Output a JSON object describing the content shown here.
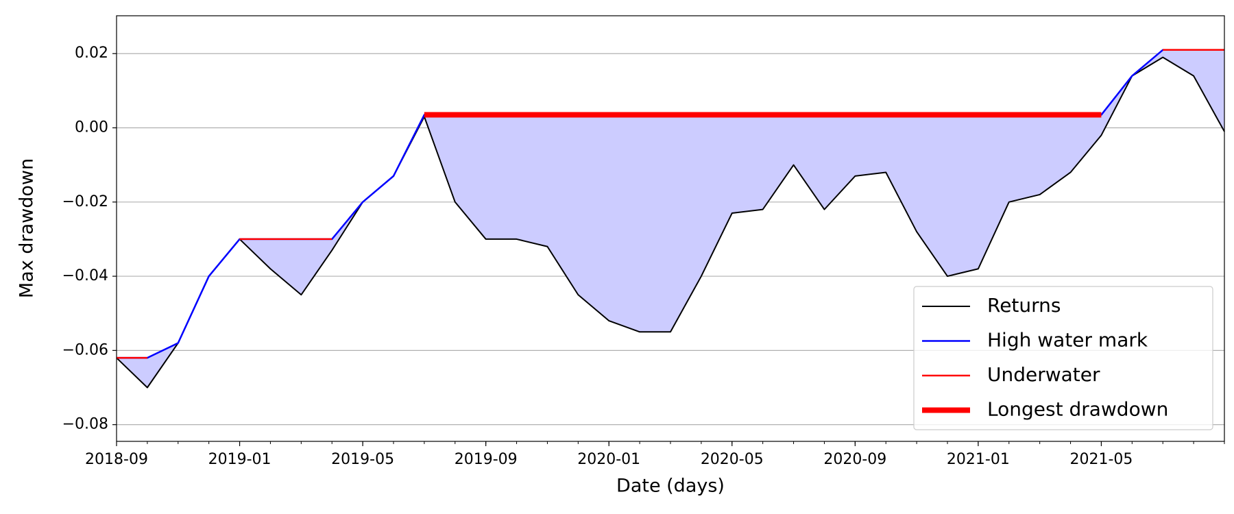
{
  "chart_data": {
    "type": "line",
    "xlabel": "Date (days)",
    "ylabel": "Max drawdown",
    "x": [
      "2018-09",
      "2018-10",
      "2018-11",
      "2018-12",
      "2019-01",
      "2019-02",
      "2019-03",
      "2019-04",
      "2019-05",
      "2019-06",
      "2019-07",
      "2019-08",
      "2019-09",
      "2019-10",
      "2019-11",
      "2019-12",
      "2020-01",
      "2020-02",
      "2020-03",
      "2020-04",
      "2020-05",
      "2020-06",
      "2020-07",
      "2020-08",
      "2020-09",
      "2020-10",
      "2020-11",
      "2020-12",
      "2021-01",
      "2021-02",
      "2021-03",
      "2021-04",
      "2021-05",
      "2021-06",
      "2021-07",
      "2021-08",
      "2021-09"
    ],
    "series": [
      {
        "name": "Returns",
        "color": "#000000",
        "linewidth": 2,
        "values": [
          -0.062,
          -0.07,
          -0.058,
          -0.04,
          -0.03,
          -0.038,
          -0.045,
          -0.033,
          -0.02,
          -0.013,
          0.003,
          -0.02,
          -0.03,
          -0.03,
          -0.032,
          -0.045,
          -0.052,
          -0.055,
          -0.055,
          -0.04,
          -0.023,
          -0.022,
          -0.01,
          -0.022,
          -0.013,
          -0.012,
          -0.028,
          -0.04,
          -0.038,
          -0.02,
          -0.018,
          -0.012,
          -0.002,
          0.014,
          0.019,
          0.014,
          -0.001
        ]
      },
      {
        "name": "High water mark",
        "color": "#0000ff",
        "linewidth": 2.5,
        "values": [
          -0.062,
          -0.062,
          -0.058,
          -0.04,
          -0.03,
          -0.03,
          -0.03,
          -0.03,
          -0.02,
          -0.013,
          0.0035,
          0.0035,
          0.0035,
          0.0035,
          0.0035,
          0.0035,
          0.0035,
          0.0035,
          0.0035,
          0.0035,
          0.0035,
          0.0035,
          0.0035,
          0.0035,
          0.0035,
          0.0035,
          0.0035,
          0.0035,
          0.0035,
          0.0035,
          0.0035,
          0.0035,
          0.0035,
          0.014,
          0.021,
          0.021,
          0.021
        ]
      },
      {
        "name": "Underwater",
        "color": "#ff0000",
        "linewidth": 2.5,
        "values": [
          -0.062,
          -0.062,
          null,
          null,
          -0.03,
          -0.03,
          -0.03,
          -0.03,
          null,
          null,
          0.0035,
          0.0035,
          0.0035,
          0.0035,
          0.0035,
          0.0035,
          0.0035,
          0.0035,
          0.0035,
          0.0035,
          0.0035,
          0.0035,
          0.0035,
          0.0035,
          0.0035,
          0.0035,
          0.0035,
          0.0035,
          0.0035,
          0.0035,
          0.0035,
          0.0035,
          0.0035,
          null,
          0.021,
          0.021,
          0.021
        ]
      },
      {
        "name": "Longest drawdown",
        "color": "#ff0000",
        "linewidth": 8,
        "values": [
          null,
          null,
          null,
          null,
          null,
          null,
          null,
          null,
          null,
          null,
          0.0035,
          0.0035,
          0.0035,
          0.0035,
          0.0035,
          0.0035,
          0.0035,
          0.0035,
          0.0035,
          0.0035,
          0.0035,
          0.0035,
          0.0035,
          0.0035,
          0.0035,
          0.0035,
          0.0035,
          0.0035,
          0.0035,
          0.0035,
          0.0035,
          0.0035,
          0.0035,
          null,
          null,
          null,
          null
        ]
      }
    ],
    "fill_color": "#ccccff",
    "xlim": [
      "2018-09",
      "2021-09"
    ],
    "xticks": [
      "2018-09",
      "2019-01",
      "2019-05",
      "2019-09",
      "2020-01",
      "2020-05",
      "2020-09",
      "2021-01",
      "2021-05"
    ],
    "ylim": [
      -0.0845,
      0.0302
    ],
    "yticks": [
      {
        "value": -0.08,
        "label": "−0.08"
      },
      {
        "value": -0.06,
        "label": "−0.06"
      },
      {
        "value": -0.04,
        "label": "−0.04"
      },
      {
        "value": -0.02,
        "label": "−0.02"
      },
      {
        "value": 0,
        "label": "0.00"
      },
      0.02
    ],
    "grid": "y",
    "legend": "lower right"
  }
}
